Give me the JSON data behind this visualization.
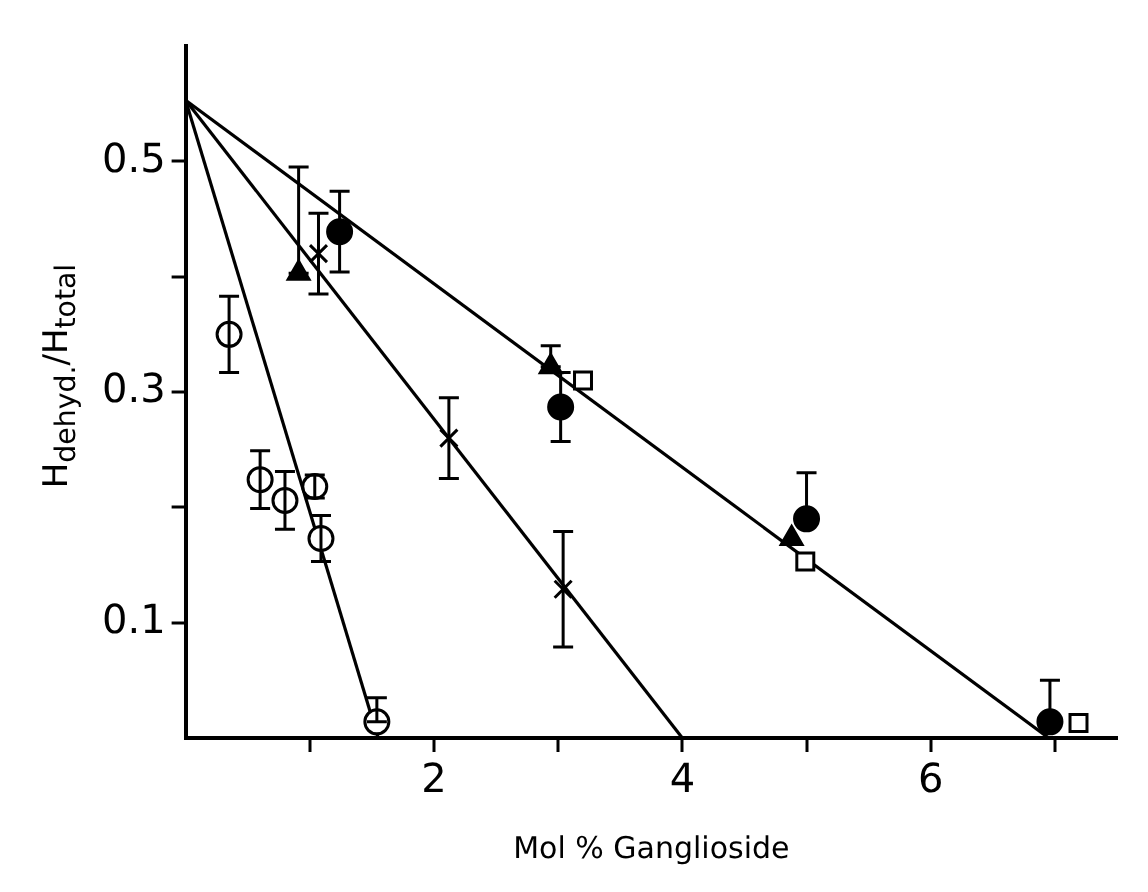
{
  "chart_data": {
    "type": "scatter",
    "xlabel": "Mol % Ganglioside",
    "ylabel": "H$_{dehyd.}$/H$_{total}$",
    "xlim": [
      0,
      7.5
    ],
    "xticks": [
      {
        "value": 1,
        "label": null
      },
      2,
      {
        "value": 3,
        "label": null
      },
      4,
      {
        "value": 5,
        "label": null
      },
      6,
      {
        "value": 7,
        "label": null
      }
    ],
    "ylim": [
      0,
      0.6
    ],
    "yticks": [
      0.1,
      {
        "value": 0.2,
        "label": null
      },
      0.3,
      {
        "value": 0.4,
        "label": null
      },
      0.5
    ],
    "grid": false,
    "legend": false,
    "series": [
      {
        "marker": "circle",
        "color": "#ffffff",
        "x": [
          0.35,
          0.6,
          0.8,
          1.04,
          1.09,
          1.54
        ],
        "values": [
          0.35,
          0.224,
          0.206,
          0.218,
          0.173,
          0.014
        ],
        "errors": [
          0.033,
          0.025,
          0.025,
          0.01,
          0.02,
          [
            0.014,
            0.035
          ]
        ]
      },
      {
        "marker": "triangle",
        "color": "#000000",
        "x": [
          0.91,
          2.94,
          4.88
        ],
        "values": [
          0.403,
          0.322,
          0.173
        ],
        "errors": [
          [
            0.403,
            0.495
          ],
          [
            0.322,
            0.34
          ],
          null
        ]
      },
      {
        "marker": "circle",
        "color": "#000000",
        "x": [
          1.24,
          3.02,
          5.0,
          6.96
        ],
        "values": [
          0.439,
          0.287,
          0.19,
          0.014
        ],
        "errors": [
          0.035,
          0.03,
          [
            0.19,
            0.23
          ],
          [
            0.014,
            0.05
          ]
        ]
      },
      {
        "marker": "cross",
        "color": "#000000",
        "x": [
          1.07,
          2.12,
          3.04
        ],
        "values": [
          0.42,
          0.26,
          0.129
        ],
        "errors": [
          0.035,
          0.035,
          0.05
        ]
      },
      {
        "marker": "square",
        "color": "#ffffff",
        "x": [
          3.2,
          4.99,
          7.19
        ],
        "values": [
          0.31,
          0.153,
          0.013
        ]
      },
      {
        "type": "line",
        "marker": "none",
        "color": "#000000",
        "x": [
          0,
          1.55
        ],
        "values": [
          0.553,
          0
        ]
      },
      {
        "type": "line",
        "marker": "none",
        "color": "#000000",
        "x": [
          0,
          4.0
        ],
        "values": [
          0.553,
          0
        ]
      },
      {
        "type": "line",
        "marker": "none",
        "color": "#000000",
        "x": [
          0,
          6.95
        ],
        "values": [
          0.553,
          0
        ]
      }
    ]
  }
}
